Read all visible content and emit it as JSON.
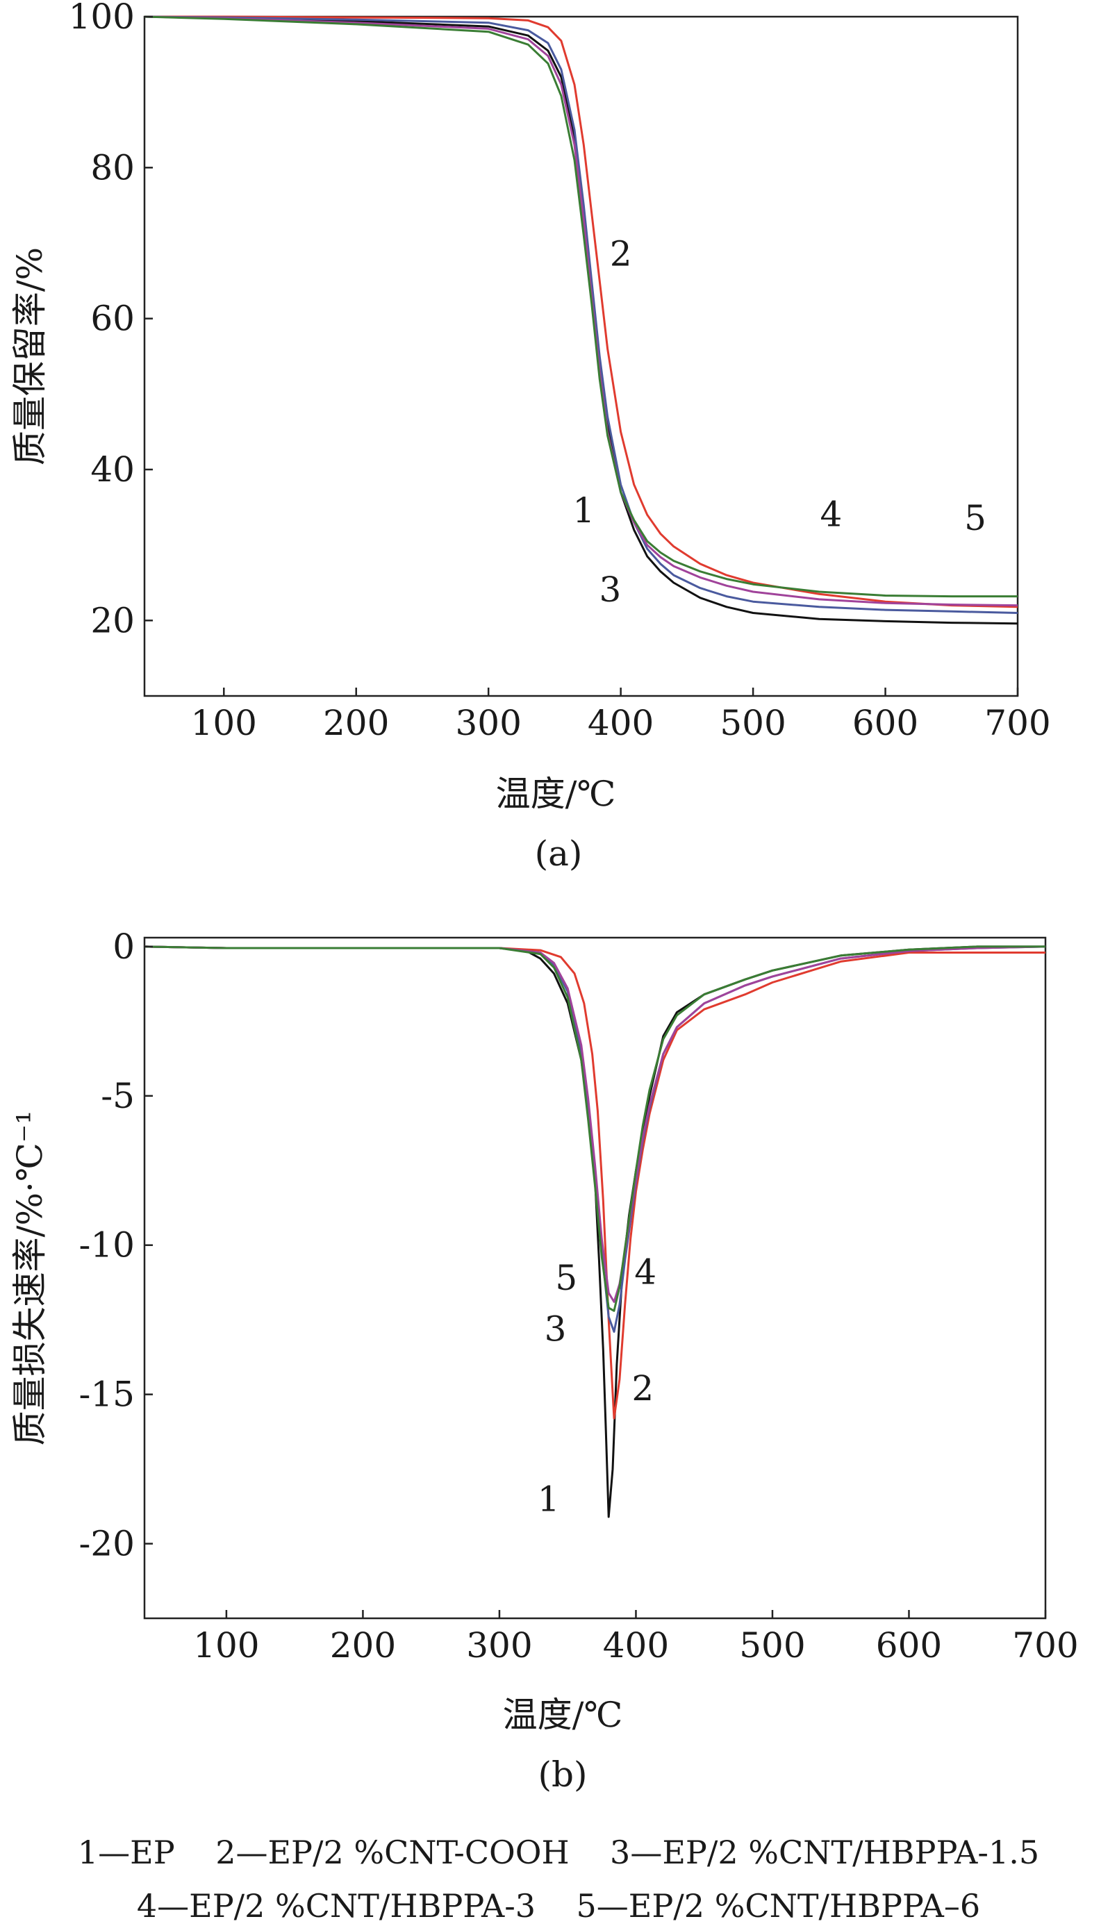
{
  "chart_data": [
    {
      "panel": "(a)",
      "type": "line",
      "xlabel": "温度/℃",
      "ylabel": "质量保留率/%",
      "xlim": [
        40,
        700
      ],
      "ylim": [
        10,
        100
      ],
      "xticks": [
        "100",
        "200",
        "300",
        "400",
        "500",
        "600",
        "700"
      ],
      "yticks": [
        "20",
        "40",
        "60",
        "80",
        "100"
      ],
      "series": [
        {
          "name": "1",
          "color": "#111111",
          "x": [
            40,
            100,
            200,
            300,
            330,
            345,
            355,
            365,
            372,
            378,
            384,
            390,
            400,
            410,
            420,
            430,
            440,
            460,
            480,
            500,
            550,
            600,
            650,
            700
          ],
          "y": [
            100,
            99.8,
            99.4,
            98.7,
            97.5,
            95.5,
            92,
            84,
            74,
            64,
            54,
            46,
            37,
            32,
            28.5,
            26.5,
            25,
            23,
            21.8,
            21,
            20.2,
            19.9,
            19.7,
            19.6
          ]
        },
        {
          "name": "2",
          "color": "#e03b2f",
          "x": [
            40,
            100,
            200,
            300,
            330,
            345,
            355,
            365,
            372,
            378,
            384,
            390,
            400,
            410,
            420,
            430,
            440,
            460,
            480,
            500,
            550,
            600,
            650,
            700
          ],
          "y": [
            100,
            100,
            99.9,
            99.8,
            99.5,
            98.6,
            96.8,
            91,
            83,
            74,
            65,
            56,
            45,
            38,
            34,
            31.5,
            29.8,
            27.5,
            26,
            25,
            23.5,
            22.5,
            22,
            21.8
          ]
        },
        {
          "name": "3",
          "color": "#4a5a9e",
          "x": [
            40,
            100,
            200,
            300,
            330,
            345,
            355,
            365,
            372,
            378,
            384,
            390,
            400,
            410,
            420,
            430,
            440,
            460,
            480,
            500,
            550,
            600,
            650,
            700
          ],
          "y": [
            100,
            99.9,
            99.6,
            99.2,
            98.2,
            96.5,
            93,
            85,
            75,
            65,
            55,
            47,
            38,
            33,
            29.5,
            27.5,
            26,
            24.3,
            23.2,
            22.5,
            21.8,
            21.4,
            21.2,
            21
          ]
        },
        {
          "name": "4",
          "color": "#a0439a",
          "x": [
            40,
            100,
            200,
            300,
            330,
            345,
            355,
            365,
            372,
            378,
            384,
            390,
            400,
            410,
            420,
            430,
            440,
            460,
            480,
            500,
            550,
            600,
            650,
            700
          ],
          "y": [
            100,
            99.8,
            99.2,
            98.4,
            97,
            94.8,
            91,
            83,
            73,
            63,
            53,
            45,
            37,
            33,
            30,
            28.4,
            27.2,
            25.7,
            24.6,
            23.8,
            22.8,
            22.3,
            22.1,
            22
          ]
        },
        {
          "name": "5",
          "color": "#3a7d34",
          "x": [
            40,
            100,
            200,
            300,
            330,
            345,
            355,
            365,
            372,
            378,
            384,
            390,
            400,
            410,
            420,
            430,
            440,
            460,
            480,
            500,
            550,
            600,
            650,
            700
          ],
          "y": [
            100,
            99.7,
            99,
            98,
            96.3,
            93.8,
            89.5,
            81,
            71,
            62,
            52,
            44.5,
            37,
            33.3,
            30.5,
            29,
            27.9,
            26.5,
            25.5,
            24.8,
            23.8,
            23.3,
            23.2,
            23.2
          ]
        }
      ],
      "annotations": [
        {
          "label": "2",
          "x": 400,
          "y": 67
        },
        {
          "label": "1",
          "x": 372,
          "y": 33
        },
        {
          "label": "3",
          "x": 392,
          "y": 22.5
        },
        {
          "label": "4",
          "x": 559,
          "y": 32.5
        },
        {
          "label": "5",
          "x": 668,
          "y": 32
        }
      ]
    },
    {
      "panel": "(b)",
      "type": "line",
      "xlabel": "温度/℃",
      "ylabel": "质量损失速率/%·℃⁻¹",
      "xlim": [
        40,
        700
      ],
      "ylim": [
        -22.5,
        0.3
      ],
      "xticks": [
        "100",
        "200",
        "300",
        "400",
        "500",
        "600",
        "700"
      ],
      "yticks": [
        "0",
        "-5",
        "-10",
        "-15",
        "-20"
      ],
      "series": [
        {
          "name": "1",
          "color": "#111111",
          "x": [
            40,
            100,
            200,
            300,
            320,
            330,
            340,
            350,
            360,
            365,
            370,
            373,
            376,
            378,
            380,
            383,
            386,
            390,
            395,
            400,
            405,
            410,
            420,
            430,
            450,
            480,
            500,
            550,
            600,
            650,
            700
          ],
          "y": [
            0,
            -0.05,
            -0.05,
            -0.05,
            -0.15,
            -0.4,
            -0.9,
            -1.9,
            -3.8,
            -5.5,
            -7.8,
            -10.5,
            -13.5,
            -16.2,
            -19.1,
            -17.5,
            -14,
            -11,
            -9,
            -7.5,
            -6.2,
            -5,
            -3,
            -2.2,
            -1.6,
            -1.1,
            -0.8,
            -0.3,
            -0.1,
            0,
            0
          ]
        },
        {
          "name": "2",
          "color": "#e03b2f",
          "x": [
            40,
            100,
            200,
            300,
            330,
            345,
            355,
            362,
            368,
            372,
            376,
            380,
            384,
            388,
            392,
            396,
            400,
            405,
            410,
            420,
            430,
            450,
            480,
            500,
            550,
            600,
            650,
            700
          ],
          "y": [
            0,
            -0.05,
            -0.05,
            -0.05,
            -0.12,
            -0.35,
            -0.9,
            -1.9,
            -3.6,
            -5.5,
            -8.5,
            -12.5,
            -15.8,
            -14.5,
            -12,
            -9.8,
            -8.2,
            -6.8,
            -5.6,
            -3.8,
            -2.8,
            -2.1,
            -1.6,
            -1.2,
            -0.5,
            -0.2,
            -0.2,
            -0.2
          ]
        },
        {
          "name": "3",
          "color": "#4a5a9e",
          "x": [
            40,
            100,
            200,
            300,
            330,
            340,
            350,
            360,
            365,
            370,
            375,
            380,
            384,
            388,
            392,
            396,
            400,
            405,
            410,
            420,
            430,
            450,
            480,
            500,
            550,
            600,
            650,
            700
          ],
          "y": [
            0,
            -0.05,
            -0.05,
            -0.05,
            -0.2,
            -0.6,
            -1.5,
            -3.5,
            -5.3,
            -7.6,
            -10.2,
            -12.4,
            -12.9,
            -12,
            -10.5,
            -9.2,
            -7.9,
            -6.5,
            -5.4,
            -3.6,
            -2.7,
            -1.9,
            -1.3,
            -1,
            -0.4,
            -0.15,
            -0.05,
            0
          ]
        },
        {
          "name": "4",
          "color": "#a0439a",
          "x": [
            40,
            100,
            200,
            300,
            330,
            340,
            350,
            360,
            365,
            370,
            375,
            380,
            384,
            388,
            392,
            396,
            400,
            405,
            410,
            420,
            430,
            450,
            480,
            500,
            550,
            600,
            650,
            700
          ],
          "y": [
            0,
            -0.05,
            -0.05,
            -0.05,
            -0.2,
            -0.55,
            -1.4,
            -3.3,
            -5.1,
            -7.3,
            -9.8,
            -11.6,
            -11.9,
            -11.3,
            -10.2,
            -9,
            -7.8,
            -6.4,
            -5.3,
            -3.6,
            -2.7,
            -1.9,
            -1.3,
            -1,
            -0.4,
            -0.15,
            -0.05,
            0
          ]
        },
        {
          "name": "5",
          "color": "#3a7d34",
          "x": [
            40,
            100,
            200,
            300,
            330,
            340,
            350,
            360,
            365,
            370,
            375,
            380,
            384,
            388,
            392,
            396,
            400,
            405,
            410,
            420,
            430,
            450,
            480,
            500,
            550,
            600,
            650,
            700
          ],
          "y": [
            0,
            -0.05,
            -0.05,
            -0.05,
            -0.25,
            -0.7,
            -1.7,
            -3.8,
            -5.8,
            -8,
            -10.4,
            -12.1,
            -12.2,
            -11.4,
            -10.1,
            -8.8,
            -7.5,
            -6,
            -4.8,
            -3.1,
            -2.3,
            -1.6,
            -1.1,
            -0.8,
            -0.3,
            -0.1,
            0,
            0
          ]
        }
      ],
      "annotations": [
        {
          "label": "5",
          "x": 349,
          "y": -11.5
        },
        {
          "label": "4",
          "x": 407,
          "y": -11.3
        },
        {
          "label": "3",
          "x": 341,
          "y": -13.2
        },
        {
          "label": "2",
          "x": 405,
          "y": -15.2
        },
        {
          "label": "1",
          "x": 336,
          "y": -18.9
        }
      ]
    }
  ],
  "legend": {
    "line1": "1—EP    2—EP/2 %CNT-COOH    3—EP/2 %CNT/HBPPA-1.5",
    "line2": "4—EP/2 %CNT/HBPPA-3    5—EP/2 %CNT/HBPPA–6"
  }
}
